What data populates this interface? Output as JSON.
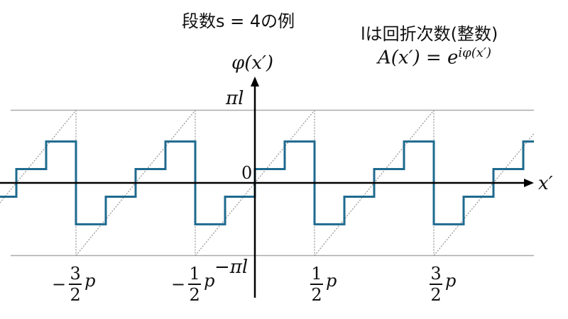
{
  "caption": "段数s = 4の例",
  "note_line1": "lは回折次数(整数)",
  "note_line2": "A(x′) = e",
  "note_sup": "iφ(x′)",
  "y_axis_label": "φ(x′)",
  "x_axis_label": "x′",
  "y_ticks": {
    "top": "πl",
    "zero": "0",
    "bottom": "−πl"
  },
  "x_ticks": [
    {
      "sign": "−",
      "num": "3",
      "den": "2",
      "unit": "p"
    },
    {
      "sign": "−",
      "num": "1",
      "den": "2",
      "unit": "p"
    },
    {
      "sign": "",
      "num": "1",
      "den": "2",
      "unit": "p"
    },
    {
      "sign": "",
      "num": "3",
      "den": "2",
      "unit": "p"
    }
  ],
  "steps": 4,
  "colors": {
    "staircase": "#1f6a8f",
    "guide": "#999999",
    "axis": "#000000"
  }
}
